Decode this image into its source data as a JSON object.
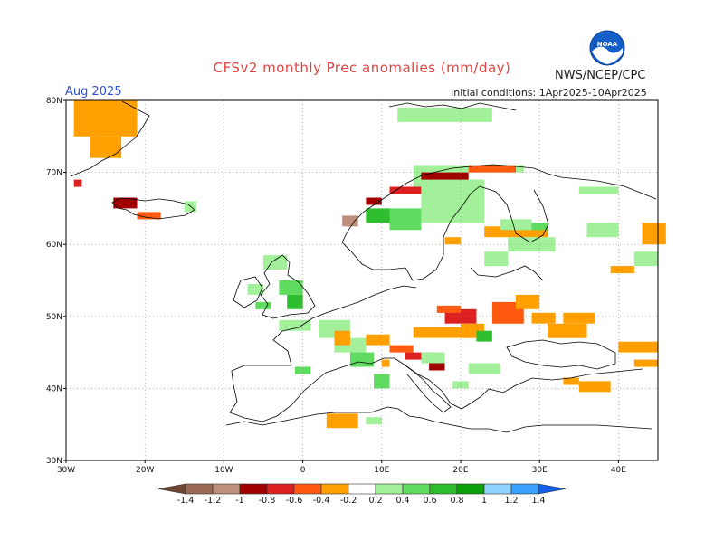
{
  "header": {
    "title": "CFSv2 monthly Prec anomalies (mm/day)",
    "agency": "NWS/NCEP/CPC",
    "logo_text": "NOAA",
    "month": "Aug 2025",
    "initial_conditions": "Initial conditions: 1Apr2025-10Apr2025"
  },
  "map": {
    "region": "Europe",
    "lon_range": [
      -30,
      45
    ],
    "lat_range": [
      30,
      80
    ],
    "x_ticks": [
      {
        "lon": -30,
        "label": "30W"
      },
      {
        "lon": -20,
        "label": "20W"
      },
      {
        "lon": -10,
        "label": "10W"
      },
      {
        "lon": 0,
        "label": "0"
      },
      {
        "lon": 10,
        "label": "10E"
      },
      {
        "lon": 20,
        "label": "20E"
      },
      {
        "lon": 30,
        "label": "30E"
      },
      {
        "lon": 40,
        "label": "40E"
      }
    ],
    "y_ticks": [
      {
        "lat": 30,
        "label": "30N"
      },
      {
        "lat": 40,
        "label": "40N"
      },
      {
        "lat": 50,
        "label": "50N"
      },
      {
        "lat": 60,
        "label": "60N"
      },
      {
        "lat": 70,
        "label": "70N"
      },
      {
        "lat": 80,
        "label": "80N"
      }
    ],
    "anomaly_cells": [
      {
        "lon": -29,
        "lat": 75,
        "dlon": 8,
        "dlat": 5,
        "value": -0.3
      },
      {
        "lon": -27,
        "lat": 72,
        "dlon": 4,
        "dlat": 3,
        "value": -0.3
      },
      {
        "lon": -29,
        "lat": 68,
        "dlon": 1,
        "dlat": 1,
        "value": -0.6
      },
      {
        "lon": -24,
        "lat": 65,
        "dlon": 3,
        "dlat": 1.5,
        "value": -0.9
      },
      {
        "lon": -21,
        "lat": 63.5,
        "dlon": 3,
        "dlat": 1,
        "value": -0.5
      },
      {
        "lon": -15,
        "lat": 64.5,
        "dlon": 1.5,
        "dlat": 1.5,
        "value": 0.3
      },
      {
        "lon": -3,
        "lat": 53,
        "dlon": 3,
        "dlat": 2,
        "value": 0.6
      },
      {
        "lon": -2,
        "lat": 51,
        "dlon": 2,
        "dlat": 2,
        "value": 0.7
      },
      {
        "lon": -5,
        "lat": 56.5,
        "dlon": 3,
        "dlat": 2,
        "value": 0.3
      },
      {
        "lon": -6,
        "lat": 51,
        "dlon": 2,
        "dlat": 1,
        "value": 0.6
      },
      {
        "lon": -7,
        "lat": 53,
        "dlon": 2,
        "dlat": 1.5,
        "value": 0.3
      },
      {
        "lon": -3,
        "lat": 48,
        "dlon": 4,
        "dlat": 1.5,
        "value": 0.3
      },
      {
        "lon": 2,
        "lat": 47,
        "dlon": 4,
        "dlat": 2.5,
        "value": 0.3
      },
      {
        "lon": 4,
        "lat": 45,
        "dlon": 4,
        "dlat": 2,
        "value": 0.3
      },
      {
        "lon": 6,
        "lat": 43,
        "dlon": 3,
        "dlat": 2,
        "value": 0.5
      },
      {
        "lon": -1,
        "lat": 42,
        "dlon": 2,
        "dlat": 1,
        "value": 0.5
      },
      {
        "lon": 4,
        "lat": 46,
        "dlon": 2,
        "dlat": 2,
        "value": -0.3
      },
      {
        "lon": 8,
        "lat": 46,
        "dlon": 3,
        "dlat": 1.5,
        "value": -0.3
      },
      {
        "lon": 11,
        "lat": 45,
        "dlon": 3,
        "dlat": 1,
        "value": -0.5
      },
      {
        "lon": 13,
        "lat": 44,
        "dlon": 4,
        "dlat": 1,
        "value": -0.7
      },
      {
        "lon": 16,
        "lat": 42.5,
        "dlon": 2,
        "dlat": 1,
        "value": -0.8
      },
      {
        "lon": 14,
        "lat": 47,
        "dlon": 6,
        "dlat": 1.5,
        "value": -0.3
      },
      {
        "lon": 18,
        "lat": 49,
        "dlon": 4,
        "dlat": 2,
        "value": -0.6
      },
      {
        "lon": 17,
        "lat": 50.5,
        "dlon": 3,
        "dlat": 1,
        "value": -0.5
      },
      {
        "lon": 20,
        "lat": 47,
        "dlon": 3,
        "dlat": 2,
        "value": -0.3
      },
      {
        "lon": 24,
        "lat": 49,
        "dlon": 4,
        "dlat": 3,
        "value": -0.4
      },
      {
        "lon": 27,
        "lat": 51,
        "dlon": 3,
        "dlat": 2,
        "value": -0.3
      },
      {
        "lon": 29,
        "lat": 49,
        "dlon": 3,
        "dlat": 1.5,
        "value": -0.3
      },
      {
        "lon": 31,
        "lat": 47,
        "dlon": 5,
        "dlat": 2,
        "value": -0.3
      },
      {
        "lon": 33,
        "lat": 49,
        "dlon": 4,
        "dlat": 1.5,
        "value": -0.3
      },
      {
        "lon": 40,
        "lat": 45,
        "dlon": 5,
        "dlat": 1.5,
        "value": -0.3
      },
      {
        "lon": 42,
        "lat": 43,
        "dlon": 3,
        "dlat": 1,
        "value": -0.3
      },
      {
        "lon": 43,
        "lat": 60,
        "dlon": 3,
        "dlat": 3,
        "value": -0.3
      },
      {
        "lon": 39,
        "lat": 56,
        "dlon": 3,
        "dlat": 1,
        "value": -0.3
      },
      {
        "lon": 23,
        "lat": 61,
        "dlon": 8,
        "dlat": 1.5,
        "value": -0.3
      },
      {
        "lon": 18,
        "lat": 60,
        "dlon": 2,
        "dlat": 1,
        "value": -0.3
      },
      {
        "lon": 35,
        "lat": 39.5,
        "dlon": 4,
        "dlat": 1.5,
        "value": -0.3
      },
      {
        "lon": 33,
        "lat": 40.5,
        "dlon": 2,
        "dlat": 1,
        "value": -0.3
      },
      {
        "lon": 3,
        "lat": 34.5,
        "dlon": 4,
        "dlat": 2,
        "value": -0.3
      },
      {
        "lon": 10,
        "lat": 43,
        "dlon": 1,
        "dlat": 1,
        "value": -0.3
      },
      {
        "lon": 26,
        "lat": 59,
        "dlon": 6,
        "dlat": 2,
        "value": 0.3
      },
      {
        "lon": 23,
        "lat": 57,
        "dlon": 3,
        "dlat": 2,
        "value": 0.3
      },
      {
        "lon": 26,
        "lat": 62,
        "dlon": 5,
        "dlat": 1,
        "value": 0.5
      },
      {
        "lon": 36,
        "lat": 61,
        "dlon": 4,
        "dlat": 2,
        "value": 0.3
      },
      {
        "lon": 42,
        "lat": 57,
        "dlon": 3,
        "dlat": 2,
        "value": 0.3
      },
      {
        "lon": 35,
        "lat": 67,
        "dlon": 5,
        "dlat": 1,
        "value": 0.3
      },
      {
        "lon": 25,
        "lat": 62,
        "dlon": 4,
        "dlat": 1.5,
        "value": 0.3
      },
      {
        "lon": 15,
        "lat": 63,
        "dlon": 8,
        "dlat": 6,
        "value": 0.3
      },
      {
        "lon": 11,
        "lat": 62,
        "dlon": 4,
        "dlat": 3,
        "value": 0.5
      },
      {
        "lon": 8,
        "lat": 63,
        "dlon": 3,
        "dlat": 2,
        "value": 0.7
      },
      {
        "lon": 14,
        "lat": 68,
        "dlon": 6,
        "dlat": 3,
        "value": 0.3
      },
      {
        "lon": 20,
        "lat": 70,
        "dlon": 8,
        "dlat": 1,
        "value": 0.3
      },
      {
        "lon": 12,
        "lat": 77,
        "dlon": 12,
        "dlat": 2,
        "value": 0.4
      },
      {
        "lon": 15,
        "lat": 43.5,
        "dlon": 3,
        "dlat": 1.5,
        "value": 0.3
      },
      {
        "lon": 22,
        "lat": 46.5,
        "dlon": 2,
        "dlat": 1.5,
        "value": 0.8
      },
      {
        "lon": 21,
        "lat": 42,
        "dlon": 4,
        "dlat": 1.5,
        "value": 0.4
      },
      {
        "lon": 19,
        "lat": 40,
        "dlon": 2,
        "dlat": 1,
        "value": 0.3
      },
      {
        "lon": 8,
        "lat": 35,
        "dlon": 2,
        "dlat": 1,
        "value": 0.3
      },
      {
        "lon": 9,
        "lat": 40,
        "dlon": 2,
        "dlat": 2,
        "value": 0.5
      },
      {
        "lon": 5,
        "lat": 62.5,
        "dlon": 2,
        "dlat": 1.5,
        "value": -1.0
      },
      {
        "lon": 8,
        "lat": 65.5,
        "dlon": 2,
        "dlat": 1,
        "value": -0.8
      },
      {
        "lon": 11,
        "lat": 67,
        "dlon": 4,
        "dlat": 1,
        "value": -0.7
      },
      {
        "lon": 15,
        "lat": 69,
        "dlon": 6,
        "dlat": 1,
        "value": -0.9
      },
      {
        "lon": 21,
        "lat": 70,
        "dlon": 6,
        "dlat": 1,
        "value": -0.5
      }
    ]
  },
  "legend": {
    "levels": [
      "-1.4",
      "-1.2",
      "-1",
      "-0.8",
      "-0.6",
      "-0.4",
      "-0.2",
      "0.2",
      "0.4",
      "0.6",
      "0.8",
      "1",
      "1.2",
      "1.4"
    ],
    "colors": [
      "#6e4632",
      "#9a6a55",
      "#bf8f7e",
      "#a00000",
      "#dc2020",
      "#ff5a10",
      "#ffa000",
      "#ffffff",
      "#a2f19a",
      "#5fdc5f",
      "#2fbe2f",
      "#0aa00a",
      "#8fd3ff",
      "#3aa0ff",
      "#1560e6"
    ]
  }
}
